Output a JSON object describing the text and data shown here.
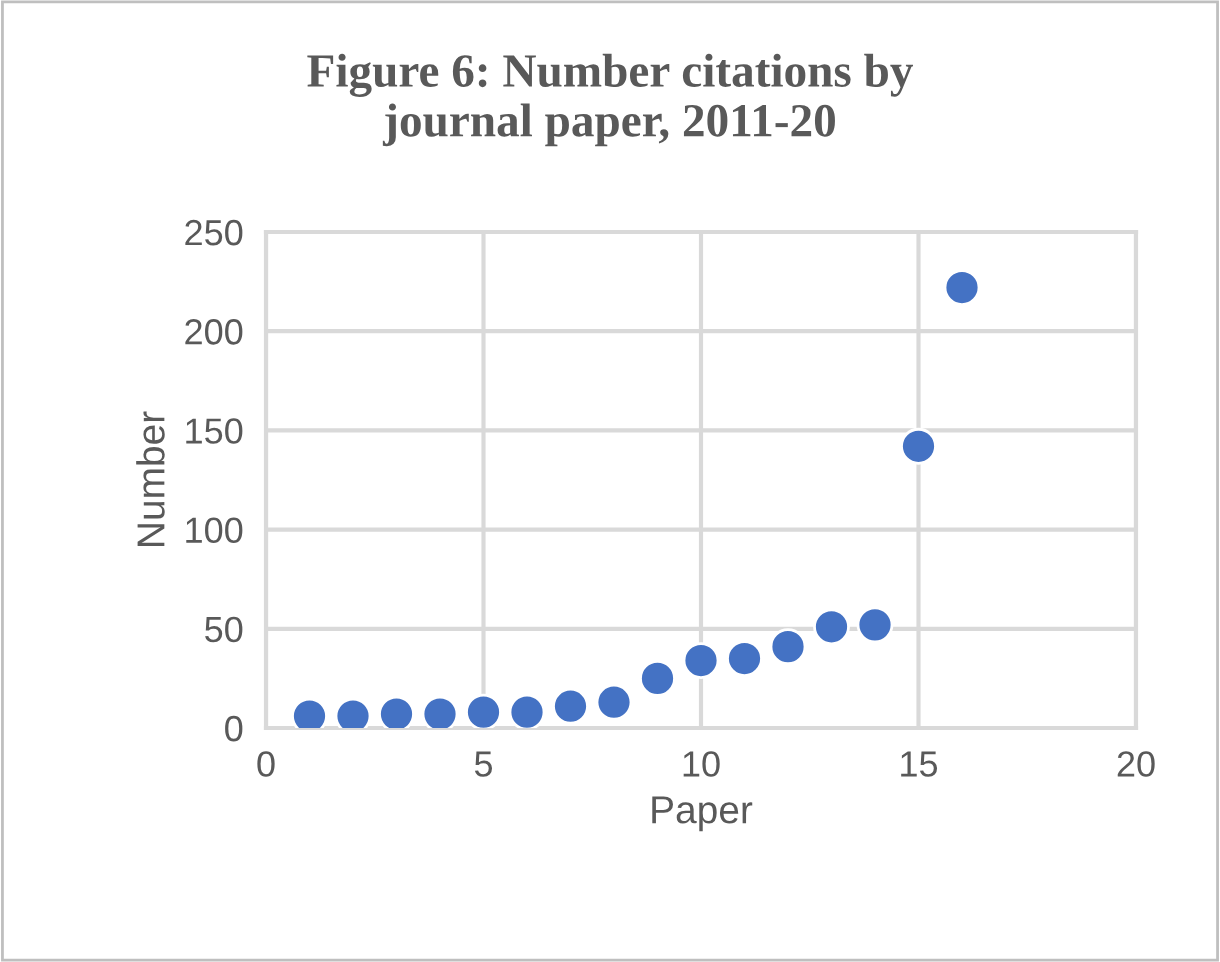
{
  "chart_data": {
    "type": "scatter",
    "title": "Figure 6: Number citations by\njournal paper, 2011-20",
    "xlabel": "Paper",
    "ylabel": "Number",
    "x": [
      1,
      2,
      3,
      4,
      5,
      6,
      7,
      8,
      9,
      10,
      11,
      12,
      13,
      14,
      15,
      16
    ],
    "series": [
      {
        "color": "#4472c4",
        "values": [
          6,
          6,
          7,
          7,
          8,
          8,
          11,
          13,
          25,
          34,
          35,
          41,
          51,
          52,
          142,
          222
        ]
      }
    ],
    "xlim": [
      0,
      20
    ],
    "xticks": [
      0,
      5,
      10,
      15,
      20
    ],
    "ylim": [
      0,
      250
    ],
    "yticks": [
      0,
      50,
      100,
      150,
      200,
      250
    ],
    "grid": true,
    "marker": "circle"
  }
}
